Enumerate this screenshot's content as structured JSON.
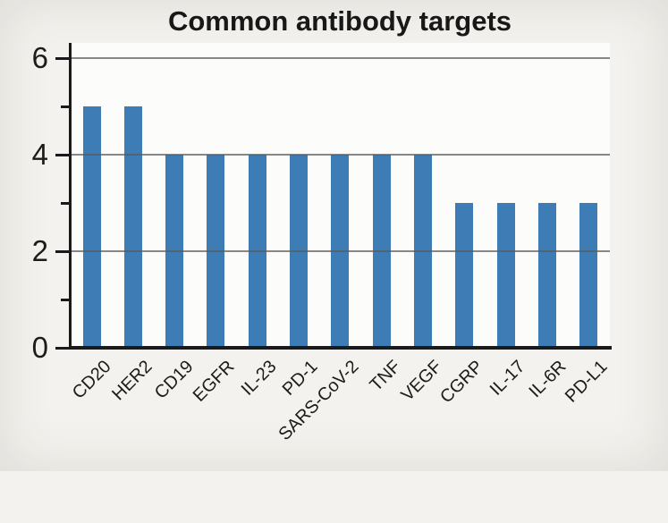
{
  "title": "Common antibody targets",
  "chart_data": {
    "type": "bar",
    "title": "Common antibody targets",
    "categories": [
      "CD20",
      "HER2",
      "CD19",
      "EGFR",
      "IL-23",
      "PD-1",
      "SARS-CoV-2",
      "TNF",
      "VEGF",
      "CGRP",
      "IL-17",
      "IL-6R",
      "PD-L1"
    ],
    "values": [
      5,
      5,
      4,
      4,
      4,
      4,
      4,
      4,
      4,
      3,
      3,
      3,
      3
    ],
    "xlabel": "",
    "ylabel": "",
    "ylim": [
      0,
      6
    ],
    "yticks_major": [
      0,
      2,
      4,
      6
    ],
    "yticks_minor": [
      1,
      3,
      5
    ],
    "gridlines_at": [
      2,
      4,
      6
    ],
    "grid": "horizontal gridlines at major ticks only",
    "legend": "none",
    "xtick_rotation_deg": 45,
    "bar_color": "#3d7cb5",
    "gridline_color": "#5a5a5a",
    "axis_color": "#1a1a1a",
    "text_color": "#1c1c1c",
    "plot_background": "#fcfcfa",
    "figure_background": "#f4f2ee"
  }
}
